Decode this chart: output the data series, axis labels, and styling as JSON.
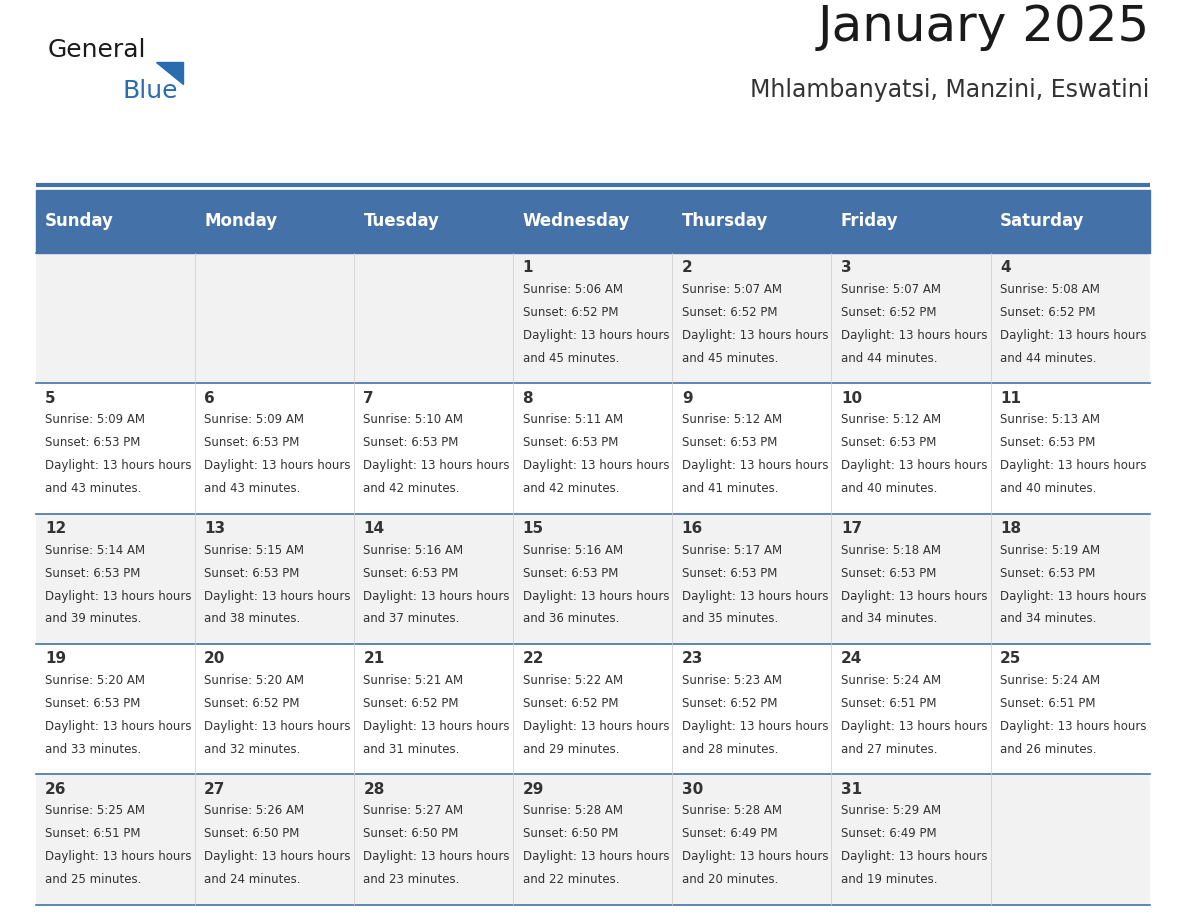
{
  "title": "January 2025",
  "subtitle": "Mhlambanyatsi, Manzini, Eswatini",
  "days_of_week": [
    "Sunday",
    "Monday",
    "Tuesday",
    "Wednesday",
    "Thursday",
    "Friday",
    "Saturday"
  ],
  "header_bg": "#4472A8",
  "header_text": "#FFFFFF",
  "odd_row_bg": "#F2F2F2",
  "even_row_bg": "#FFFFFF",
  "cell_text": "#333333",
  "day_num_text": "#333333",
  "title_color": "#1a1a1a",
  "subtitle_color": "#333333",
  "logo_general_color": "#1a1a1a",
  "logo_blue_color": "#2B6CB0",
  "grid_line_color": "#4472A8",
  "calendar": [
    [
      null,
      null,
      null,
      {
        "day": 1,
        "sunrise": "5:06 AM",
        "sunset": "6:52 PM",
        "daylight": "13 hours and 45 minutes."
      },
      {
        "day": 2,
        "sunrise": "5:07 AM",
        "sunset": "6:52 PM",
        "daylight": "13 hours and 45 minutes."
      },
      {
        "day": 3,
        "sunrise": "5:07 AM",
        "sunset": "6:52 PM",
        "daylight": "13 hours and 44 minutes."
      },
      {
        "day": 4,
        "sunrise": "5:08 AM",
        "sunset": "6:52 PM",
        "daylight": "13 hours and 44 minutes."
      }
    ],
    [
      {
        "day": 5,
        "sunrise": "5:09 AM",
        "sunset": "6:53 PM",
        "daylight": "13 hours and 43 minutes."
      },
      {
        "day": 6,
        "sunrise": "5:09 AM",
        "sunset": "6:53 PM",
        "daylight": "13 hours and 43 minutes."
      },
      {
        "day": 7,
        "sunrise": "5:10 AM",
        "sunset": "6:53 PM",
        "daylight": "13 hours and 42 minutes."
      },
      {
        "day": 8,
        "sunrise": "5:11 AM",
        "sunset": "6:53 PM",
        "daylight": "13 hours and 42 minutes."
      },
      {
        "day": 9,
        "sunrise": "5:12 AM",
        "sunset": "6:53 PM",
        "daylight": "13 hours and 41 minutes."
      },
      {
        "day": 10,
        "sunrise": "5:12 AM",
        "sunset": "6:53 PM",
        "daylight": "13 hours and 40 minutes."
      },
      {
        "day": 11,
        "sunrise": "5:13 AM",
        "sunset": "6:53 PM",
        "daylight": "13 hours and 40 minutes."
      }
    ],
    [
      {
        "day": 12,
        "sunrise": "5:14 AM",
        "sunset": "6:53 PM",
        "daylight": "13 hours and 39 minutes."
      },
      {
        "day": 13,
        "sunrise": "5:15 AM",
        "sunset": "6:53 PM",
        "daylight": "13 hours and 38 minutes."
      },
      {
        "day": 14,
        "sunrise": "5:16 AM",
        "sunset": "6:53 PM",
        "daylight": "13 hours and 37 minutes."
      },
      {
        "day": 15,
        "sunrise": "5:16 AM",
        "sunset": "6:53 PM",
        "daylight": "13 hours and 36 minutes."
      },
      {
        "day": 16,
        "sunrise": "5:17 AM",
        "sunset": "6:53 PM",
        "daylight": "13 hours and 35 minutes."
      },
      {
        "day": 17,
        "sunrise": "5:18 AM",
        "sunset": "6:53 PM",
        "daylight": "13 hours and 34 minutes."
      },
      {
        "day": 18,
        "sunrise": "5:19 AM",
        "sunset": "6:53 PM",
        "daylight": "13 hours and 34 minutes."
      }
    ],
    [
      {
        "day": 19,
        "sunrise": "5:20 AM",
        "sunset": "6:53 PM",
        "daylight": "13 hours and 33 minutes."
      },
      {
        "day": 20,
        "sunrise": "5:20 AM",
        "sunset": "6:52 PM",
        "daylight": "13 hours and 32 minutes."
      },
      {
        "day": 21,
        "sunrise": "5:21 AM",
        "sunset": "6:52 PM",
        "daylight": "13 hours and 31 minutes."
      },
      {
        "day": 22,
        "sunrise": "5:22 AM",
        "sunset": "6:52 PM",
        "daylight": "13 hours and 29 minutes."
      },
      {
        "day": 23,
        "sunrise": "5:23 AM",
        "sunset": "6:52 PM",
        "daylight": "13 hours and 28 minutes."
      },
      {
        "day": 24,
        "sunrise": "5:24 AM",
        "sunset": "6:51 PM",
        "daylight": "13 hours and 27 minutes."
      },
      {
        "day": 25,
        "sunrise": "5:24 AM",
        "sunset": "6:51 PM",
        "daylight": "13 hours and 26 minutes."
      }
    ],
    [
      {
        "day": 26,
        "sunrise": "5:25 AM",
        "sunset": "6:51 PM",
        "daylight": "13 hours and 25 minutes."
      },
      {
        "day": 27,
        "sunrise": "5:26 AM",
        "sunset": "6:50 PM",
        "daylight": "13 hours and 24 minutes."
      },
      {
        "day": 28,
        "sunrise": "5:27 AM",
        "sunset": "6:50 PM",
        "daylight": "13 hours and 23 minutes."
      },
      {
        "day": 29,
        "sunrise": "5:28 AM",
        "sunset": "6:50 PM",
        "daylight": "13 hours and 22 minutes."
      },
      {
        "day": 30,
        "sunrise": "5:28 AM",
        "sunset": "6:49 PM",
        "daylight": "13 hours and 20 minutes."
      },
      {
        "day": 31,
        "sunrise": "5:29 AM",
        "sunset": "6:49 PM",
        "daylight": "13 hours and 19 minutes."
      },
      null
    ]
  ]
}
